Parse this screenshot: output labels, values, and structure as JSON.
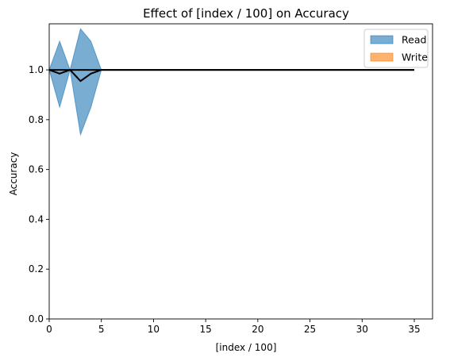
{
  "chart_data": {
    "type": "line",
    "title": "Effect of [index / 100] on Accuracy",
    "xlabel": "[index / 100]",
    "ylabel": "Accuracy",
    "xlim": [
      0,
      36.75
    ],
    "ylim": [
      0,
      1.185
    ],
    "grid": false,
    "legend_placement": "top-right",
    "x_ticks": [
      0,
      5,
      10,
      15,
      20,
      25,
      30,
      35
    ],
    "x_tick_labels": [
      "0",
      "5",
      "10",
      "15",
      "20",
      "25",
      "30",
      "35"
    ],
    "y_ticks": [
      0.0,
      0.2,
      0.4,
      0.6,
      0.8,
      1.0
    ],
    "y_tick_labels": [
      "0.0",
      "0.2",
      "0.4",
      "0.6",
      "0.8",
      "1.0"
    ],
    "series": [
      {
        "name": "Read",
        "color": "#1f77b4",
        "x": [
          0,
          1,
          2,
          3,
          4,
          5,
          6,
          7,
          8,
          9,
          10,
          11,
          12,
          13,
          14,
          15,
          16,
          17,
          18,
          19,
          20,
          21,
          22,
          23,
          24,
          25,
          26,
          27,
          28,
          29,
          30,
          31,
          32,
          33,
          34,
          35
        ],
        "mean": [
          1.0,
          0.985,
          1.0,
          0.955,
          0.985,
          1.0,
          1.0,
          1.0,
          1.0,
          1.0,
          1.0,
          1.0,
          1.0,
          1.0,
          1.0,
          1.0,
          1.0,
          1.0,
          1.0,
          1.0,
          1.0,
          1.0,
          1.0,
          1.0,
          1.0,
          1.0,
          1.0,
          1.0,
          1.0,
          1.0,
          1.0,
          1.0,
          1.0,
          1.0,
          1.0,
          1.0
        ],
        "upper": [
          1.0,
          1.115,
          1.0,
          1.165,
          1.115,
          1.0,
          1.0,
          1.0,
          1.0,
          1.0,
          1.0,
          1.0,
          1.0,
          1.0,
          1.0,
          1.0,
          1.0,
          1.0,
          1.0,
          1.0,
          1.0,
          1.0,
          1.0,
          1.0,
          1.0,
          1.0,
          1.0,
          1.0,
          1.0,
          1.0,
          1.0,
          1.0,
          1.0,
          1.0,
          1.0,
          1.0
        ],
        "lower": [
          1.0,
          0.85,
          1.0,
          0.74,
          0.85,
          1.0,
          1.0,
          1.0,
          1.0,
          1.0,
          1.0,
          1.0,
          1.0,
          1.0,
          1.0,
          1.0,
          1.0,
          1.0,
          1.0,
          1.0,
          1.0,
          1.0,
          1.0,
          1.0,
          1.0,
          1.0,
          1.0,
          1.0,
          1.0,
          1.0,
          1.0,
          1.0,
          1.0,
          1.0,
          1.0,
          1.0
        ]
      },
      {
        "name": "Write",
        "color": "#ff7f0e",
        "x": [
          0,
          1,
          2,
          3,
          4,
          5,
          6,
          7,
          8,
          9,
          10,
          11,
          12,
          13,
          14,
          15,
          16,
          17,
          18,
          19,
          20,
          21,
          22,
          23,
          24,
          25,
          26,
          27,
          28,
          29,
          30,
          31,
          32,
          33,
          34,
          35
        ],
        "mean": [
          1.0,
          1.0,
          1.0,
          1.0,
          1.0,
          1.0,
          1.0,
          1.0,
          1.0,
          1.0,
          1.0,
          1.0,
          1.0,
          1.0,
          1.0,
          1.0,
          1.0,
          1.0,
          1.0,
          1.0,
          1.0,
          1.0,
          1.0,
          1.0,
          1.0,
          1.0,
          1.0,
          1.0,
          1.0,
          1.0,
          1.0,
          1.0,
          1.0,
          1.0,
          1.0,
          1.0
        ],
        "upper": [
          1.0,
          1.0,
          1.0,
          1.0,
          1.0,
          1.0,
          1.0,
          1.0,
          1.0,
          1.0,
          1.0,
          1.0,
          1.0,
          1.0,
          1.0,
          1.0,
          1.0,
          1.0,
          1.0,
          1.0,
          1.0,
          1.0,
          1.0,
          1.0,
          1.0,
          1.0,
          1.0,
          1.0,
          1.0,
          1.0,
          1.0,
          1.0,
          1.0,
          1.0,
          1.0,
          1.0
        ],
        "lower": [
          1.0,
          1.0,
          1.0,
          1.0,
          1.0,
          1.0,
          1.0,
          1.0,
          1.0,
          1.0,
          1.0,
          1.0,
          1.0,
          1.0,
          1.0,
          1.0,
          1.0,
          1.0,
          1.0,
          1.0,
          1.0,
          1.0,
          1.0,
          1.0,
          1.0,
          1.0,
          1.0,
          1.0,
          1.0,
          1.0,
          1.0,
          1.0,
          1.0,
          1.0,
          1.0,
          1.0
        ]
      }
    ]
  }
}
